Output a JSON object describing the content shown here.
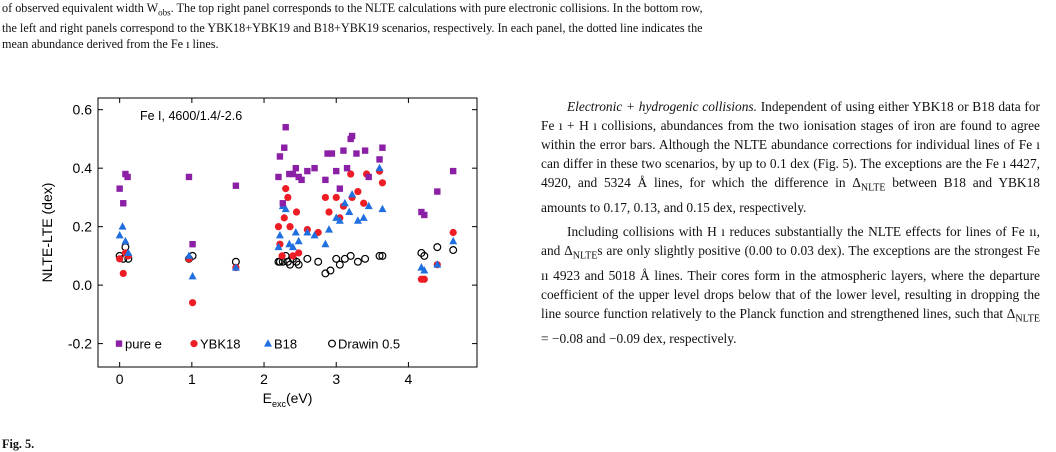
{
  "top_caption": {
    "line1": "of observed equivalent width W",
    "line1_sub": "obs",
    "line1_rest": ". The top right panel corresponds to the NLTE calculations with pure electronic collisions. In the bottom row,",
    "line2": "the left and right panels correspond to the YBK18+YBK19 and B18+YBK19 scenarios, respectively. In each panel, the dotted line indicates the",
    "line3": "mean abundance derived from the Fe ı lines."
  },
  "chart_data": {
    "type": "scatter",
    "annotation": "Fe I, 4600/1.4/-2.6",
    "xlabel": "E",
    "xlabel_sub": "exc",
    "xlabel_rest": "(eV)",
    "ylabel": "NLTE-LTE (dex)",
    "xlim": [
      -0.3,
      4.95
    ],
    "ylim": [
      -0.28,
      0.64
    ],
    "xticks": [
      0,
      1,
      2,
      3,
      4
    ],
    "xtick_labels": [
      "0",
      "1",
      "2",
      "3",
      "4"
    ],
    "yticks": [
      -0.2,
      0.0,
      0.2,
      0.4,
      0.6
    ],
    "ytick_labels": [
      "-0.2",
      "0.0",
      "0.2",
      "0.4",
      "0.6"
    ],
    "legend_position": "bottom-left",
    "series": [
      {
        "name": "pure e",
        "marker": "square",
        "color": "#8b1fa5",
        "points": [
          [
            0.0,
            0.33
          ],
          [
            0.05,
            0.28
          ],
          [
            0.08,
            0.38
          ],
          [
            0.11,
            0.37
          ],
          [
            0.96,
            0.37
          ],
          [
            1.01,
            0.14
          ],
          [
            1.61,
            0.34
          ],
          [
            2.2,
            0.37
          ],
          [
            2.22,
            0.44
          ],
          [
            2.26,
            0.28
          ],
          [
            2.28,
            0.47
          ],
          [
            2.3,
            0.54
          ],
          [
            2.35,
            0.38
          ],
          [
            2.4,
            0.38
          ],
          [
            2.44,
            0.4
          ],
          [
            2.48,
            0.37
          ],
          [
            2.52,
            0.36
          ],
          [
            2.6,
            0.39
          ],
          [
            2.7,
            0.4
          ],
          [
            2.85,
            0.36
          ],
          [
            2.88,
            0.45
          ],
          [
            2.94,
            0.45
          ],
          [
            3.0,
            0.39
          ],
          [
            3.05,
            0.33
          ],
          [
            3.1,
            0.46
          ],
          [
            3.15,
            0.4
          ],
          [
            3.2,
            0.5
          ],
          [
            3.22,
            0.51
          ],
          [
            3.28,
            0.45
          ],
          [
            3.4,
            0.46
          ],
          [
            3.45,
            0.37
          ],
          [
            3.6,
            0.43
          ],
          [
            3.64,
            0.47
          ],
          [
            4.18,
            0.25
          ],
          [
            4.22,
            0.24
          ],
          [
            4.4,
            0.32
          ],
          [
            4.62,
            0.39
          ]
        ]
      },
      {
        "name": "YBK18",
        "marker": "circle",
        "color": "#ee1c24",
        "points": [
          [
            0.0,
            0.09
          ],
          [
            0.05,
            0.04
          ],
          [
            0.08,
            0.11
          ],
          [
            0.12,
            0.1
          ],
          [
            0.96,
            0.09
          ],
          [
            1.01,
            -0.06
          ],
          [
            1.61,
            0.06
          ],
          [
            2.2,
            0.2
          ],
          [
            2.22,
            0.14
          ],
          [
            2.25,
            0.1
          ],
          [
            2.28,
            0.23
          ],
          [
            2.3,
            0.33
          ],
          [
            2.33,
            0.3
          ],
          [
            2.36,
            0.2
          ],
          [
            2.4,
            0.1
          ],
          [
            2.45,
            0.25
          ],
          [
            2.48,
            0.11
          ],
          [
            2.6,
            0.19
          ],
          [
            2.75,
            0.18
          ],
          [
            2.85,
            0.3
          ],
          [
            2.9,
            0.25
          ],
          [
            3.0,
            0.3
          ],
          [
            3.05,
            0.23
          ],
          [
            3.1,
            0.27
          ],
          [
            3.2,
            0.38
          ],
          [
            3.22,
            0.3
          ],
          [
            3.3,
            0.32
          ],
          [
            3.38,
            0.28
          ],
          [
            3.42,
            0.38
          ],
          [
            3.6,
            0.39
          ],
          [
            3.64,
            0.35
          ],
          [
            4.18,
            0.02
          ],
          [
            4.22,
            0.02
          ],
          [
            4.4,
            0.07
          ],
          [
            4.62,
            0.18
          ]
        ]
      },
      {
        "name": "B18",
        "marker": "triangle",
        "color": "#1f6fe0",
        "points": [
          [
            0.0,
            0.17
          ],
          [
            0.04,
            0.2
          ],
          [
            0.08,
            0.15
          ],
          [
            0.12,
            0.11
          ],
          [
            0.96,
            0.1
          ],
          [
            1.01,
            0.03
          ],
          [
            1.61,
            0.06
          ],
          [
            2.2,
            0.13
          ],
          [
            2.22,
            0.17
          ],
          [
            2.26,
            0.27
          ],
          [
            2.3,
            0.26
          ],
          [
            2.35,
            0.14
          ],
          [
            2.4,
            0.13
          ],
          [
            2.44,
            0.18
          ],
          [
            2.48,
            0.15
          ],
          [
            2.6,
            0.18
          ],
          [
            2.7,
            0.17
          ],
          [
            2.85,
            0.14
          ],
          [
            2.9,
            0.19
          ],
          [
            3.0,
            0.23
          ],
          [
            3.05,
            0.22
          ],
          [
            3.12,
            0.28
          ],
          [
            3.18,
            0.25
          ],
          [
            3.22,
            0.31
          ],
          [
            3.3,
            0.22
          ],
          [
            3.38,
            0.23
          ],
          [
            3.45,
            0.27
          ],
          [
            3.6,
            0.4
          ],
          [
            3.64,
            0.26
          ],
          [
            4.18,
            0.06
          ],
          [
            4.22,
            0.05
          ],
          [
            4.4,
            0.07
          ],
          [
            4.62,
            0.15
          ]
        ]
      },
      {
        "name": "Drawin 0.5",
        "marker": "open-circle",
        "color": "#000000",
        "points": [
          [
            0.0,
            0.1
          ],
          [
            0.05,
            0.09
          ],
          [
            0.08,
            0.13
          ],
          [
            0.12,
            0.09
          ],
          [
            0.96,
            0.09
          ],
          [
            1.01,
            0.1
          ],
          [
            1.61,
            0.08
          ],
          [
            2.2,
            0.08
          ],
          [
            2.22,
            0.08
          ],
          [
            2.26,
            0.08
          ],
          [
            2.3,
            0.1
          ],
          [
            2.33,
            0.08
          ],
          [
            2.36,
            0.07
          ],
          [
            2.4,
            0.09
          ],
          [
            2.45,
            0.08
          ],
          [
            2.48,
            0.07
          ],
          [
            2.6,
            0.09
          ],
          [
            2.75,
            0.08
          ],
          [
            2.85,
            0.04
          ],
          [
            2.92,
            0.05
          ],
          [
            3.0,
            0.09
          ],
          [
            3.05,
            0.07
          ],
          [
            3.12,
            0.09
          ],
          [
            3.2,
            0.1
          ],
          [
            3.3,
            0.08
          ],
          [
            3.4,
            0.09
          ],
          [
            3.6,
            0.1
          ],
          [
            3.64,
            0.1
          ],
          [
            4.18,
            0.11
          ],
          [
            4.22,
            0.1
          ],
          [
            4.4,
            0.13
          ],
          [
            4.62,
            0.12
          ]
        ]
      }
    ]
  },
  "fig_label": "Fig. 5.",
  "right_column": {
    "p1_italic": "Electronic + hydrogenic collisions.",
    "p1_a": " Independent of using either YBK18 or B18 data for Fe ı + H ı collisions, abundances from the two ionisation stages of iron are found to agree within the error bars. Although the NLTE abundance corrections for individual lines of Fe ı can differ in these two scenarios, by up to 0.1 dex (Fig. 5). The exceptions are the Fe ı 4427, 4920, and 5324 Å lines, for which the difference in Δ",
    "p1_sub": "NLTE",
    "p1_b": " between B18 and YBK18 amounts to 0.17, 0.13, and 0.15 dex, respectively.",
    "p2_a": "Including collisions with H ı reduces substantially the NLTE effects for lines of Fe ıı, and Δ",
    "p2_sub": "NLTE",
    "p2_b": "s are only slightly positive (0.00 to 0.03 dex). The exceptions are the strongest Fe ıı 4923 and 5018 Å lines. Their cores form in the atmospheric layers, where the departure coefficient of the upper level drops below that of the lower level, resulting in dropping the line source function relatively to the Planck function and strengthened lines, such that Δ",
    "p2_sub2": "NLTE",
    "p2_c": " = −0.08 and −0.09 dex, respectively."
  }
}
